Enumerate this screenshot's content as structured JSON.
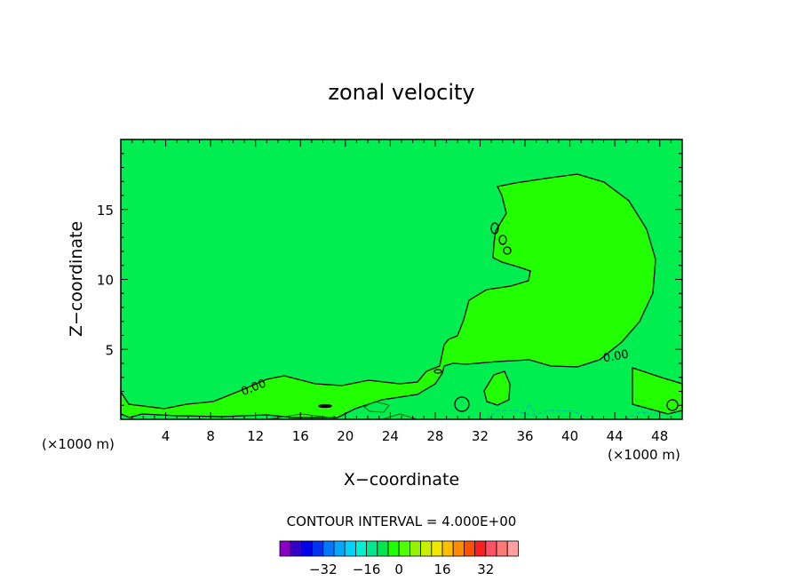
{
  "chart_data": {
    "type": "heatmap",
    "title": "zonal velocity",
    "xlabel": "X−coordinate",
    "ylabel": "Z−coordinate",
    "x_unit_left": "(×1000 m)",
    "x_unit_right": "(×1000 m)",
    "xlim": [
      0,
      50
    ],
    "ylim": [
      0,
      20
    ],
    "x_ticks": [
      4,
      8,
      12,
      16,
      20,
      24,
      28,
      32,
      36,
      40,
      44,
      48
    ],
    "y_ticks": [
      5,
      10,
      15
    ],
    "contour_interval_text": "CONTOUR INTERVAL = 4.000E+00",
    "contour_labels": [
      {
        "text": "0.00",
        "x": 12.0,
        "y": 2.1
      },
      {
        "text": "0.00",
        "x": 44.3,
        "y": 4.3
      }
    ],
    "field_note": "values near 0 almost everywhere; slightly positive region (0 contour) over x 29-48, z 4-17; weak negative patches near surface",
    "colorbar": {
      "ticks": [
        "−32",
        "−16",
        "0",
        "16",
        "32"
      ],
      "colors": [
        "#8b00c8",
        "#3200c8",
        "#0000e6",
        "#0032f0",
        "#0078ff",
        "#00a8ff",
        "#00d2ff",
        "#00f0d2",
        "#00e68c",
        "#00e650",
        "#1eff00",
        "#50ff00",
        "#96f000",
        "#c8f000",
        "#f0e600",
        "#ffbe00",
        "#ff8c00",
        "#ff5000",
        "#ff1e1e",
        "#ff5064",
        "#ff7878",
        "#ffa0a0"
      ]
    },
    "colors": {
      "background": "#00ee50",
      "positive_region": "#22ff00"
    }
  }
}
